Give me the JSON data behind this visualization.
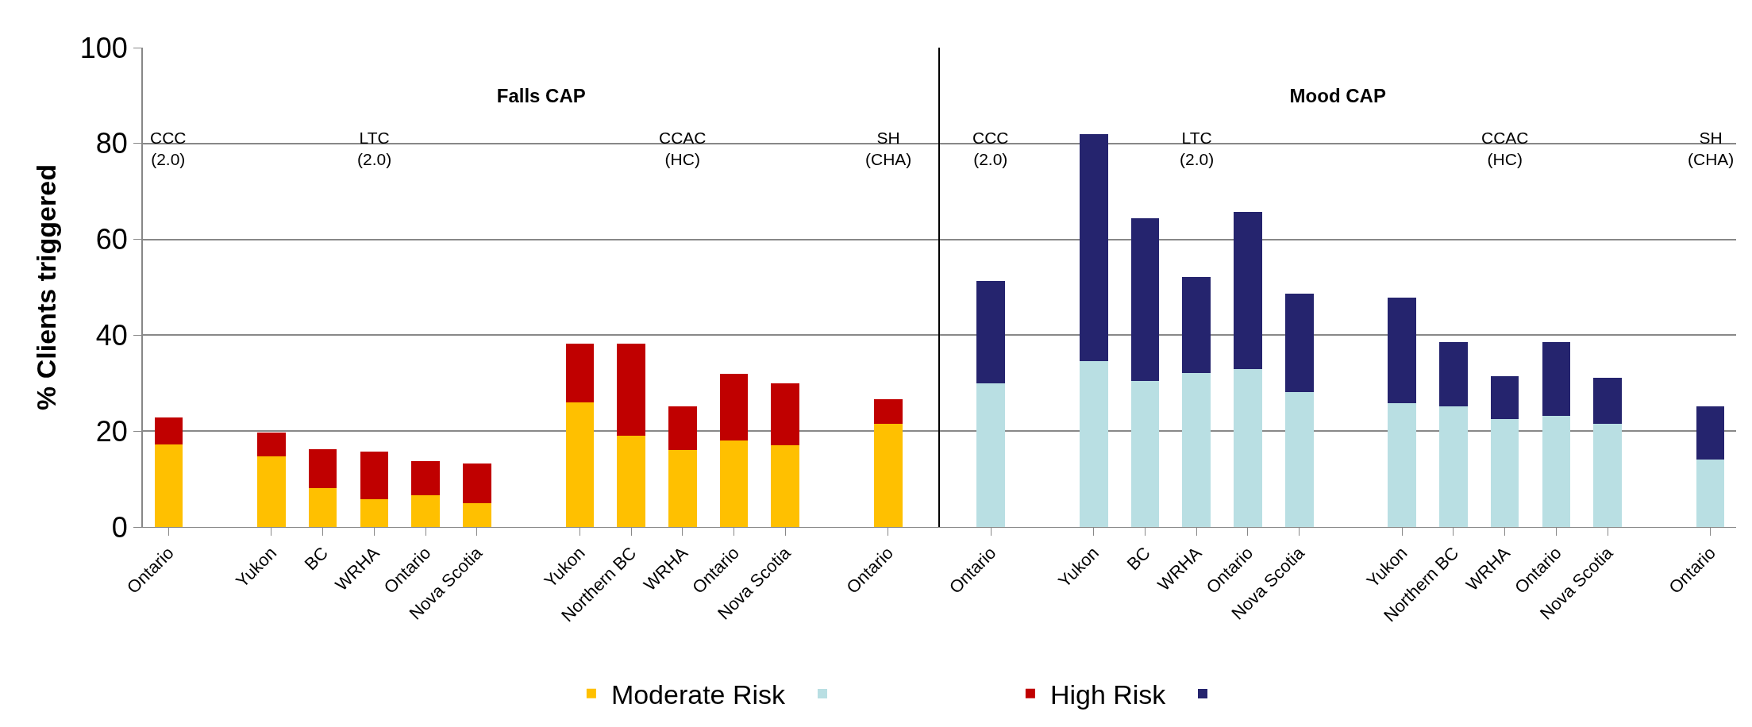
{
  "chart_data": [
    {
      "type": "bar",
      "stacked": true,
      "title": "Falls CAP",
      "ylabel": "% Clients triggered",
      "categories": [
        "Ontario",
        null,
        "Yukon",
        "BC",
        "WRHA",
        "Ontario",
        "Nova Scotia",
        null,
        "Yukon",
        "Northern BC",
        "WRHA",
        "Ontario",
        "Nova Scotia",
        null,
        "Ontario"
      ],
      "series": [
        {
          "name": "Moderate Risk",
          "color": "#ffc000",
          "values": [
            17.3,
            null,
            14.7,
            8.1,
            5.8,
            6.7,
            4.9,
            null,
            26.0,
            19.0,
            16.0,
            18.1,
            17.1,
            null,
            21.5
          ]
        },
        {
          "name": "High Risk",
          "color": "#c00000",
          "values": [
            5.5,
            null,
            5.0,
            8.1,
            9.9,
            7.0,
            8.3,
            null,
            12.3,
            19.2,
            9.2,
            13.9,
            12.9,
            null,
            5.2
          ]
        }
      ],
      "ylim": [
        0,
        100
      ],
      "yticks": [
        0,
        20,
        40,
        60,
        80,
        100
      ],
      "grid": "y",
      "legend": "bottom",
      "annotations": [
        "CCC\n(2.0)",
        "LTC\n(2.0)",
        "CCAC\n(HC)",
        "SH\n(CHA)"
      ]
    },
    {
      "type": "bar",
      "stacked": true,
      "title": "Mood CAP",
      "categories": [
        "Ontario",
        null,
        "Yukon",
        "BC",
        "WRHA",
        "Ontario",
        "Nova Scotia",
        null,
        "Yukon",
        "Northern BC",
        "WRHA",
        "Ontario",
        "Nova Scotia",
        null,
        "Ontario"
      ],
      "series": [
        {
          "color": "#b9dfe3",
          "values": [
            29.9,
            null,
            34.6,
            30.4,
            32.2,
            33.0,
            28.1,
            null,
            25.9,
            25.1,
            22.5,
            23.2,
            21.5,
            null,
            14.1
          ]
        },
        {
          "color": "#25246e",
          "values": [
            21.5,
            null,
            47.4,
            34.0,
            20.0,
            32.8,
            20.5,
            null,
            22.0,
            13.4,
            8.9,
            15.3,
            9.6,
            null,
            11.0
          ]
        }
      ],
      "ylim": [
        0,
        100
      ],
      "yticks": [
        0,
        20,
        40,
        60,
        80,
        100
      ],
      "grid": "y",
      "tick_labels": "x",
      "annotations": [
        "CCC\n(2.0)",
        "LTC\n(2.0)",
        "CCAC\n(HC)",
        "SH\n(CHA)"
      ]
    }
  ]
}
